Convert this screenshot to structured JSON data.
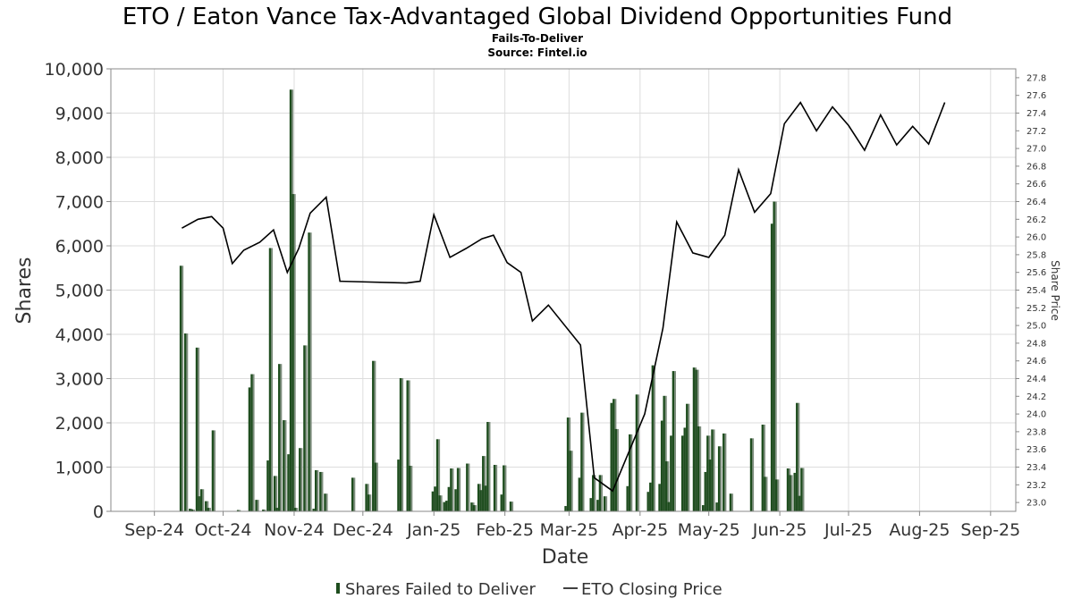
{
  "chart_data": {
    "type": "bar",
    "title": "ETO / Eaton Vance Tax-Advantaged Global Dividend Opportunities Fund",
    "subtitle_line1": "Fails-To-Deliver",
    "subtitle_line2": "Source: Fintel.io",
    "xlabel": "Date",
    "ylabel": "Shares",
    "y2label": "Share Price",
    "ylim": [
      0,
      10000
    ],
    "y2lim": [
      22.9,
      27.9
    ],
    "grid": true,
    "legend_position": "bottom-center",
    "x_ticks": [
      "Sep-24",
      "Oct-24",
      "Nov-24",
      "Dec-24",
      "Jan-25",
      "Feb-25",
      "Mar-25",
      "Apr-25",
      "May-25",
      "Jun-25",
      "Jul-25",
      "Aug-25",
      "Sep-25"
    ],
    "x_tick_dates": [
      "2024-09-01",
      "2024-10-01",
      "2024-11-01",
      "2024-12-01",
      "2025-01-01",
      "2025-02-01",
      "2025-03-01",
      "2025-04-01",
      "2025-05-01",
      "2025-06-01",
      "2025-07-01",
      "2025-08-01",
      "2025-09-01"
    ],
    "y_ticks": [
      "0",
      "1,000",
      "2,000",
      "3,000",
      "4,000",
      "5,000",
      "6,000",
      "7,000",
      "8,000",
      "9,000",
      "10,000"
    ],
    "y2_ticks": [
      "23.0",
      "23.2",
      "23.4",
      "23.6",
      "23.8",
      "24.0",
      "24.2",
      "24.4",
      "24.6",
      "24.8",
      "25.0",
      "25.2",
      "25.4",
      "25.6",
      "25.8",
      "26.0",
      "26.2",
      "26.4",
      "26.6",
      "26.8",
      "27.0",
      "27.2",
      "27.4",
      "27.6",
      "27.8"
    ],
    "series": [
      {
        "name": "Shares Failed to Deliver",
        "type": "bar",
        "color": "#1e4d1e",
        "points": [
          {
            "date": "2024-09-12",
            "value": 5550
          },
          {
            "date": "2024-09-14",
            "value": 4020
          },
          {
            "date": "2024-09-16",
            "value": 60
          },
          {
            "date": "2024-09-17",
            "value": 40
          },
          {
            "date": "2024-09-19",
            "value": 3700
          },
          {
            "date": "2024-09-20",
            "value": 340
          },
          {
            "date": "2024-09-21",
            "value": 500
          },
          {
            "date": "2024-09-23",
            "value": 230
          },
          {
            "date": "2024-09-24",
            "value": 80
          },
          {
            "date": "2024-09-26",
            "value": 1830
          },
          {
            "date": "2024-10-07",
            "value": 30
          },
          {
            "date": "2024-10-12",
            "value": 2800
          },
          {
            "date": "2024-10-13",
            "value": 3100
          },
          {
            "date": "2024-10-15",
            "value": 260
          },
          {
            "date": "2024-10-18",
            "value": 40
          },
          {
            "date": "2024-10-20",
            "value": 1150
          },
          {
            "date": "2024-10-21",
            "value": 5950
          },
          {
            "date": "2024-10-23",
            "value": 800
          },
          {
            "date": "2024-10-24",
            "value": 80
          },
          {
            "date": "2024-10-25",
            "value": 3330
          },
          {
            "date": "2024-10-27",
            "value": 2060
          },
          {
            "date": "2024-10-29",
            "value": 1290
          },
          {
            "date": "2024-10-30",
            "value": 9530
          },
          {
            "date": "2024-10-31",
            "value": 7170
          },
          {
            "date": "2024-11-01",
            "value": 80
          },
          {
            "date": "2024-11-03",
            "value": 1430
          },
          {
            "date": "2024-11-05",
            "value": 3750
          },
          {
            "date": "2024-11-07",
            "value": 6300
          },
          {
            "date": "2024-11-09",
            "value": 60
          },
          {
            "date": "2024-11-10",
            "value": 930
          },
          {
            "date": "2024-11-12",
            "value": 890
          },
          {
            "date": "2024-11-14",
            "value": 400
          },
          {
            "date": "2024-11-26",
            "value": 760
          },
          {
            "date": "2024-12-02",
            "value": 620
          },
          {
            "date": "2024-12-03",
            "value": 380
          },
          {
            "date": "2024-12-05",
            "value": 3400
          },
          {
            "date": "2024-12-06",
            "value": 1100
          },
          {
            "date": "2024-12-16",
            "value": 1170
          },
          {
            "date": "2024-12-17",
            "value": 3010
          },
          {
            "date": "2024-12-20",
            "value": 2960
          },
          {
            "date": "2024-12-21",
            "value": 1030
          },
          {
            "date": "2024-12-31",
            "value": 450
          },
          {
            "date": "2025-01-01",
            "value": 560
          },
          {
            "date": "2025-01-02",
            "value": 1630
          },
          {
            "date": "2025-01-03",
            "value": 360
          },
          {
            "date": "2025-01-05",
            "value": 210
          },
          {
            "date": "2025-01-06",
            "value": 240
          },
          {
            "date": "2025-01-07",
            "value": 550
          },
          {
            "date": "2025-01-08",
            "value": 970
          },
          {
            "date": "2025-01-10",
            "value": 500
          },
          {
            "date": "2025-01-11",
            "value": 980
          },
          {
            "date": "2025-01-15",
            "value": 1080
          },
          {
            "date": "2025-01-17",
            "value": 200
          },
          {
            "date": "2025-01-18",
            "value": 140
          },
          {
            "date": "2025-01-20",
            "value": 620
          },
          {
            "date": "2025-01-21",
            "value": 480
          },
          {
            "date": "2025-01-22",
            "value": 1250
          },
          {
            "date": "2025-01-23",
            "value": 580
          },
          {
            "date": "2025-01-24",
            "value": 2020
          },
          {
            "date": "2025-01-27",
            "value": 1050
          },
          {
            "date": "2025-01-30",
            "value": 380
          },
          {
            "date": "2025-01-31",
            "value": 1040
          },
          {
            "date": "2025-02-03",
            "value": 220
          },
          {
            "date": "2025-02-27",
            "value": 120
          },
          {
            "date": "2025-02-28",
            "value": 2120
          },
          {
            "date": "2025-03-01",
            "value": 1370
          },
          {
            "date": "2025-03-05",
            "value": 760
          },
          {
            "date": "2025-03-06",
            "value": 2230
          },
          {
            "date": "2025-03-10",
            "value": 300
          },
          {
            "date": "2025-03-11",
            "value": 820
          },
          {
            "date": "2025-03-13",
            "value": 260
          },
          {
            "date": "2025-03-14",
            "value": 820
          },
          {
            "date": "2025-03-16",
            "value": 340
          },
          {
            "date": "2025-03-19",
            "value": 2450
          },
          {
            "date": "2025-03-20",
            "value": 2540
          },
          {
            "date": "2025-03-21",
            "value": 1860
          },
          {
            "date": "2025-03-26",
            "value": 570
          },
          {
            "date": "2025-03-27",
            "value": 1740
          },
          {
            "date": "2025-03-30",
            "value": 2640
          },
          {
            "date": "2025-04-04",
            "value": 440
          },
          {
            "date": "2025-04-05",
            "value": 650
          },
          {
            "date": "2025-04-06",
            "value": 3300
          },
          {
            "date": "2025-04-09",
            "value": 620
          },
          {
            "date": "2025-04-10",
            "value": 2050
          },
          {
            "date": "2025-04-11",
            "value": 2610
          },
          {
            "date": "2025-04-12",
            "value": 1130
          },
          {
            "date": "2025-04-13",
            "value": 210
          },
          {
            "date": "2025-04-14",
            "value": 1710
          },
          {
            "date": "2025-04-15",
            "value": 3170
          },
          {
            "date": "2025-04-19",
            "value": 1710
          },
          {
            "date": "2025-04-20",
            "value": 1890
          },
          {
            "date": "2025-04-21",
            "value": 2430
          },
          {
            "date": "2025-04-24",
            "value": 3250
          },
          {
            "date": "2025-04-25",
            "value": 3200
          },
          {
            "date": "2025-04-26",
            "value": 1920
          },
          {
            "date": "2025-04-28",
            "value": 140
          },
          {
            "date": "2025-04-29",
            "value": 890
          },
          {
            "date": "2025-04-30",
            "value": 1710
          },
          {
            "date": "2025-05-01",
            "value": 1170
          },
          {
            "date": "2025-05-02",
            "value": 1850
          },
          {
            "date": "2025-05-04",
            "value": 200
          },
          {
            "date": "2025-05-05",
            "value": 1470
          },
          {
            "date": "2025-05-07",
            "value": 1760
          },
          {
            "date": "2025-05-10",
            "value": 400
          },
          {
            "date": "2025-05-19",
            "value": 1650
          },
          {
            "date": "2025-05-24",
            "value": 1960
          },
          {
            "date": "2025-05-25",
            "value": 780
          },
          {
            "date": "2025-05-28",
            "value": 6500
          },
          {
            "date": "2025-05-29",
            "value": 7000
          },
          {
            "date": "2025-05-30",
            "value": 720
          },
          {
            "date": "2025-06-04",
            "value": 970
          },
          {
            "date": "2025-06-05",
            "value": 820
          },
          {
            "date": "2025-06-07",
            "value": 870
          },
          {
            "date": "2025-06-08",
            "value": 2450
          },
          {
            "date": "2025-06-09",
            "value": 350
          },
          {
            "date": "2025-06-10",
            "value": 980
          }
        ]
      },
      {
        "name": "ETO Closing Price",
        "type": "line",
        "color": "#000000",
        "points": [
          {
            "date": "2024-09-13",
            "value": 26.1
          },
          {
            "date": "2024-09-20",
            "value": 26.2
          },
          {
            "date": "2024-09-26",
            "value": 26.23
          },
          {
            "date": "2024-10-01",
            "value": 26.1
          },
          {
            "date": "2024-10-05",
            "value": 25.7
          },
          {
            "date": "2024-10-10",
            "value": 25.85
          },
          {
            "date": "2024-10-17",
            "value": 25.94
          },
          {
            "date": "2024-10-23",
            "value": 26.08
          },
          {
            "date": "2024-10-29",
            "value": 25.6
          },
          {
            "date": "2024-11-03",
            "value": 25.87
          },
          {
            "date": "2024-11-08",
            "value": 26.27
          },
          {
            "date": "2024-11-15",
            "value": 26.45
          },
          {
            "date": "2024-11-21",
            "value": 25.5
          },
          {
            "date": "2024-12-20",
            "value": 25.48
          },
          {
            "date": "2024-12-26",
            "value": 25.5
          },
          {
            "date": "2025-01-01",
            "value": 26.25
          },
          {
            "date": "2025-01-08",
            "value": 25.77
          },
          {
            "date": "2025-01-15",
            "value": 25.87
          },
          {
            "date": "2025-01-22",
            "value": 25.98
          },
          {
            "date": "2025-01-27",
            "value": 26.02
          },
          {
            "date": "2025-02-02",
            "value": 25.71
          },
          {
            "date": "2025-02-08",
            "value": 25.6
          },
          {
            "date": "2025-02-13",
            "value": 25.05
          },
          {
            "date": "2025-02-20",
            "value": 25.23
          },
          {
            "date": "2025-03-06",
            "value": 24.78
          },
          {
            "date": "2025-03-12",
            "value": 23.28
          },
          {
            "date": "2025-03-20",
            "value": 23.13
          },
          {
            "date": "2025-04-03",
            "value": 24.0
          },
          {
            "date": "2025-04-11",
            "value": 24.97
          },
          {
            "date": "2025-04-17",
            "value": 26.17
          },
          {
            "date": "2025-04-24",
            "value": 25.82
          },
          {
            "date": "2025-05-01",
            "value": 25.77
          },
          {
            "date": "2025-05-08",
            "value": 26.02
          },
          {
            "date": "2025-05-14",
            "value": 26.76
          },
          {
            "date": "2025-05-21",
            "value": 26.28
          },
          {
            "date": "2025-05-28",
            "value": 26.49
          },
          {
            "date": "2025-06-03",
            "value": 27.28
          },
          {
            "date": "2025-06-10",
            "value": 27.52
          },
          {
            "date": "2025-06-17",
            "value": 27.2
          },
          {
            "date": "2025-06-24",
            "value": 27.47
          },
          {
            "date": "2025-07-01",
            "value": 27.26
          },
          {
            "date": "2025-07-08",
            "value": 26.98
          },
          {
            "date": "2025-07-15",
            "value": 27.38
          },
          {
            "date": "2025-07-22",
            "value": 27.04
          },
          {
            "date": "2025-07-29",
            "value": 27.25
          },
          {
            "date": "2025-08-05",
            "value": 27.05
          },
          {
            "date": "2025-08-12",
            "value": 27.52
          }
        ]
      }
    ]
  },
  "legend": {
    "bar_label": "Shares Failed to Deliver",
    "line_label": "ETO Closing Price"
  },
  "colors": {
    "bar_dark": "#1e4d1e",
    "bar_light": "#7f8f7f",
    "line": "#000000",
    "grid": "#dddddd"
  }
}
